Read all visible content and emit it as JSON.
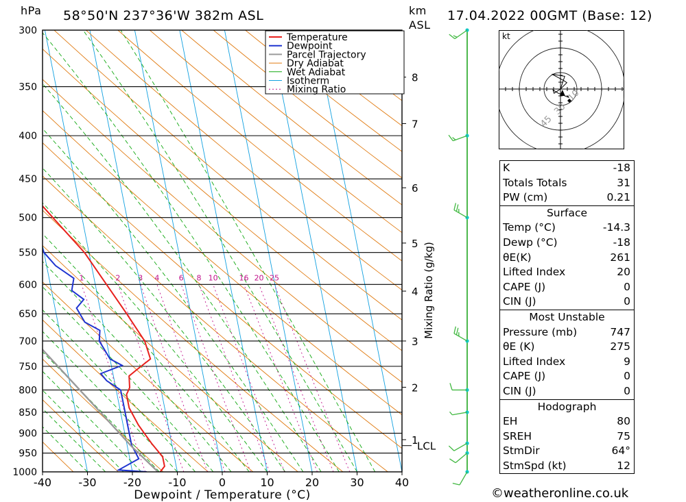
{
  "header": {
    "pressure_unit": "hPa",
    "location": "58°50'N 237°36'W 382m ASL",
    "height_unit": "km",
    "height_ref": "ASL",
    "datetime": "17.04.2022 00GMT (Base: 12)"
  },
  "chart_data": {
    "type": "skew-t",
    "xlabel": "Dewpoint / Temperature (°C)",
    "ylabel_right": "Mixing Ratio (g/kg)",
    "xlim": [
      -40,
      40
    ],
    "ylim_hpa": [
      1000,
      300
    ],
    "x_ticks": [
      "-40",
      "-30",
      "-20",
      "-10",
      "0",
      "10",
      "20",
      "30",
      "40"
    ],
    "pressure_levels": [
      300,
      350,
      400,
      450,
      500,
      550,
      600,
      650,
      700,
      750,
      800,
      850,
      900,
      950,
      1000
    ],
    "height_km_ticks": [
      {
        "label": "8",
        "p": 341
      },
      {
        "label": "7",
        "p": 387
      },
      {
        "label": "6",
        "p": 461
      },
      {
        "label": "5",
        "p": 536
      },
      {
        "label": "4",
        "p": 611
      },
      {
        "label": "3",
        "p": 700
      },
      {
        "label": "2",
        "p": 794
      },
      {
        "label": "1",
        "p": 916
      }
    ],
    "lcl": {
      "label": "LCL",
      "p": 931
    },
    "mixing_ratio_labels": [
      "1",
      "2",
      "3",
      "4",
      "6",
      "8",
      "10",
      "16",
      "20",
      "25"
    ],
    "mixing_ratio_values": [
      1,
      2,
      3,
      4,
      6,
      8,
      10,
      16,
      20,
      25
    ],
    "legend": [
      "Temperature",
      "Dewpoint",
      "Parcel Trajectory",
      "Dry Adiabat",
      "Wet Adiabat",
      "Isotherm",
      "Mixing Ratio"
    ],
    "colors": {
      "temperature": "#e8201c",
      "dewpoint": "#1e34d0",
      "parcel": "#9a9a9a",
      "dry_adiabat": "#e07a10",
      "wet_adiabat": "#10a810",
      "isotherm": "#10a0e0",
      "mixing_ratio": "#c0108a"
    },
    "series": [
      {
        "name": "Temperature",
        "points": [
          {
            "p": 1000,
            "t": -13.8
          },
          {
            "p": 985,
            "t": -12.6
          },
          {
            "p": 960,
            "t": -12.6
          },
          {
            "p": 925,
            "t": -14.5
          },
          {
            "p": 880,
            "t": -16.6
          },
          {
            "p": 840,
            "t": -17.9
          },
          {
            "p": 810,
            "t": -17.9
          },
          {
            "p": 795,
            "t": -16.9
          },
          {
            "p": 770,
            "t": -16.5
          },
          {
            "p": 755,
            "t": -14.2
          },
          {
            "p": 735,
            "t": -11.0
          },
          {
            "p": 700,
            "t": -11.5
          },
          {
            "p": 650,
            "t": -14.3
          },
          {
            "p": 600,
            "t": -17.5
          },
          {
            "p": 550,
            "t": -21.0
          },
          {
            "p": 500,
            "t": -26.5
          },
          {
            "p": 450,
            "t": -32.5
          },
          {
            "p": 400,
            "t": -38.5
          },
          {
            "p": 370,
            "t": -41.4
          },
          {
            "p": 360,
            "t": -41.2
          },
          {
            "p": 300,
            "t": -48.8
          }
        ]
      },
      {
        "name": "Dewpoint",
        "points": [
          {
            "p": 1000,
            "t": -16.8
          },
          {
            "p": 995,
            "t": -23.0
          },
          {
            "p": 965,
            "t": -18.0
          },
          {
            "p": 930,
            "t": -19.0
          },
          {
            "p": 880,
            "t": -19.0
          },
          {
            "p": 840,
            "t": -19.0
          },
          {
            "p": 800,
            "t": -19.0
          },
          {
            "p": 780,
            "t": -21.7
          },
          {
            "p": 765,
            "t": -22.7
          },
          {
            "p": 748,
            "t": -17.6
          },
          {
            "p": 735,
            "t": -20.0
          },
          {
            "p": 700,
            "t": -21.6
          },
          {
            "p": 680,
            "t": -21.0
          },
          {
            "p": 665,
            "t": -24.0
          },
          {
            "p": 640,
            "t": -25.2
          },
          {
            "p": 625,
            "t": -23.2
          },
          {
            "p": 610,
            "t": -25.5
          },
          {
            "p": 590,
            "t": -24.5
          },
          {
            "p": 570,
            "t": -28.0
          },
          {
            "p": 550,
            "t": -30.0
          },
          {
            "p": 530,
            "t": -30.5
          },
          {
            "p": 500,
            "t": -34.5
          },
          {
            "p": 450,
            "t": -41.0
          },
          {
            "p": 400,
            "t": -45.0
          },
          {
            "p": 350,
            "t": -49.5
          },
          {
            "p": 300,
            "t": -53.5
          }
        ]
      },
      {
        "name": "Parcel Trajectory",
        "points": [
          {
            "p": 1000,
            "t": -14.3
          },
          {
            "p": 931,
            "t": -19.2
          },
          {
            "p": 850,
            "t": -24.5
          },
          {
            "p": 700,
            "t": -36.0
          },
          {
            "p": 600,
            "t": -45.5
          },
          {
            "p": 500,
            "t": -57.0
          },
          {
            "p": 450,
            "t": -64.0
          }
        ]
      }
    ],
    "wind_profile": [
      {
        "p": 1000,
        "dir": 210,
        "spd": 10
      },
      {
        "p": 950,
        "dir": 230,
        "spd": 10
      },
      {
        "p": 925,
        "dir": 240,
        "spd": 10
      },
      {
        "p": 850,
        "dir": 260,
        "spd": 5
      },
      {
        "p": 800,
        "dir": 270,
        "spd": 10
      },
      {
        "p": 700,
        "dir": 300,
        "spd": 25
      },
      {
        "p": 500,
        "dir": 300,
        "spd": 25
      },
      {
        "p": 400,
        "dir": 250,
        "spd": 15
      },
      {
        "p": 300,
        "dir": 235,
        "spd": 15
      }
    ]
  },
  "hodograph": {
    "unit": "kt",
    "ring_labels": [
      "10",
      "30",
      "45"
    ],
    "trace_kt": [
      [
        0,
        0
      ],
      [
        2,
        -6
      ],
      [
        -4,
        -7
      ],
      [
        1.5,
        -4
      ],
      [
        3,
        -3
      ],
      [
        0,
        0
      ],
      [
        -3,
        2
      ],
      [
        -3.5,
        0.5
      ],
      [
        -1,
        2
      ],
      [
        4,
        4
      ],
      [
        3,
        3
      ]
    ],
    "storm_motion_kt": [
      -3.5,
      2
    ]
  },
  "indices": {
    "k_label": "K",
    "k_value": "-18",
    "tt_label": "Totals Totals",
    "tt_value": "31",
    "pw_label": "PW (cm)",
    "pw_value": "0.21"
  },
  "surface": {
    "title": "Surface",
    "rows": [
      {
        "label": "Temp (°C)",
        "value": "-14.3"
      },
      {
        "label": "Dewp (°C)",
        "value": "-18"
      },
      {
        "label": "θE(K)",
        "value": "261"
      },
      {
        "label": "Lifted Index",
        "value": "20"
      },
      {
        "label": "CAPE (J)",
        "value": "0"
      },
      {
        "label": "CIN (J)",
        "value": "0"
      }
    ]
  },
  "most_unstable": {
    "title": "Most Unstable",
    "rows": [
      {
        "label": "Pressure (mb)",
        "value": "747"
      },
      {
        "label": "θE (K)",
        "value": "275"
      },
      {
        "label": "Lifted Index",
        "value": "9"
      },
      {
        "label": "CAPE (J)",
        "value": "0"
      },
      {
        "label": "CIN (J)",
        "value": "0"
      }
    ]
  },
  "hodo_table": {
    "title": "Hodograph",
    "rows": [
      {
        "label": "EH",
        "value": "80"
      },
      {
        "label": "SREH",
        "value": "75"
      },
      {
        "label": "StmDir",
        "value": "64°"
      },
      {
        "label": "StmSpd (kt)",
        "value": "12"
      }
    ]
  },
  "footer": {
    "copyright": "©weatheronline.co.uk"
  }
}
